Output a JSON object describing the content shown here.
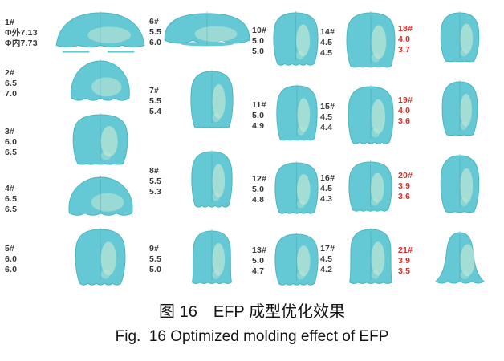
{
  "figure": {
    "background": "#ffffff",
    "shape_fill": "#64c9d4",
    "shape_edge": "#4ab5c3",
    "shape_highlight": "#bfe6d4",
    "shape_centerline": "#2d95a5",
    "label_color": "#3a3a3a",
    "red_label_color": "#d92d28",
    "caption_cn": "图 16　EFP 成型优化效果",
    "caption_en": "Fig.  16 Optimized molding effect of EFP",
    "columns": [
      {
        "units": [
          {
            "label": "1#",
            "values": [
              "Φ外7.13",
              "Φ内7.73"
            ],
            "red": false,
            "shape": "wide-dome-shape",
            "w": 112,
            "h": 46
          },
          {
            "label": "2#",
            "values": [
              "6.5",
              "7.0"
            ],
            "red": false,
            "shape": "round-cap-shape",
            "w": 78,
            "h": 54
          },
          {
            "label": "3#",
            "values": [
              "6.0",
              "6.5"
            ],
            "red": false,
            "shape": "bell-shape",
            "w": 70,
            "h": 64
          },
          {
            "label": "4#",
            "values": [
              "6.5",
              "6.5"
            ],
            "red": false,
            "shape": "round-cap-shape",
            "w": 85,
            "h": 52
          },
          {
            "label": "5#",
            "values": [
              "6.0",
              "6.0"
            ],
            "red": false,
            "shape": "bell-scallop-shape",
            "w": 64,
            "h": 70
          }
        ]
      },
      {
        "units": [
          {
            "label": "6#",
            "values": [
              "5.5",
              "6.0"
            ],
            "red": false,
            "shape": "wide-flat-cap-shape",
            "w": 110,
            "h": 44
          },
          {
            "label": "7#",
            "values": [
              "5.5",
              "5.4"
            ],
            "red": false,
            "shape": "bell-shape",
            "w": 54,
            "h": 72
          },
          {
            "label": "8#",
            "values": [
              "5.5",
              "5.3"
            ],
            "red": false,
            "shape": "bell-scallop-shape",
            "w": 52,
            "h": 70
          },
          {
            "label": "9#",
            "values": [
              "5.5",
              "5.0"
            ],
            "red": false,
            "shape": "bell-skirt-shape",
            "w": 52,
            "h": 68
          }
        ]
      },
      {
        "units": [
          {
            "label": "10#",
            "values": [
              "5.0",
              "5.0"
            ],
            "red": false,
            "shape": "bell-scallop-shape",
            "w": 57,
            "h": 66
          },
          {
            "label": "11#",
            "values": [
              "5.0",
              "4.9"
            ],
            "red": false,
            "shape": "bell-shape",
            "w": 52,
            "h": 70
          },
          {
            "label": "12#",
            "values": [
              "5.0",
              "4.8"
            ],
            "red": false,
            "shape": "bell-scallop-shape",
            "w": 55,
            "h": 64
          },
          {
            "label": "13#",
            "values": [
              "5.0",
              "4.7"
            ],
            "red": false,
            "shape": "bell-scallop-shape",
            "w": 55,
            "h": 64
          }
        ]
      },
      {
        "units": [
          {
            "label": "14#",
            "values": [
              "4.5",
              "4.5"
            ],
            "red": false,
            "shape": "bell-shape",
            "w": 62,
            "h": 70
          },
          {
            "label": "15#",
            "values": [
              "4.5",
              "4.4"
            ],
            "red": false,
            "shape": "bell-scallop-shape",
            "w": 58,
            "h": 72
          },
          {
            "label": "16#",
            "values": [
              "4.5",
              "4.3"
            ],
            "red": false,
            "shape": "bell-scallop-shape",
            "w": 55,
            "h": 62
          },
          {
            "label": "17#",
            "values": [
              "4.5",
              "4.2"
            ],
            "red": false,
            "shape": "bell-skirt-shape",
            "w": 56,
            "h": 70
          }
        ]
      },
      {
        "units": [
          {
            "label": "18#",
            "values": [
              "4.0",
              "3.7"
            ],
            "red": true,
            "shape": "egg-shape",
            "w": 52,
            "h": 62
          },
          {
            "label": "19#",
            "values": [
              "4.0",
              "3.6"
            ],
            "red": true,
            "shape": "egg-shape",
            "w": 48,
            "h": 68
          },
          {
            "label": "20#",
            "values": [
              "3.9",
              "3.6"
            ],
            "red": true,
            "shape": "egg-shape",
            "w": 52,
            "h": 72
          },
          {
            "label": "21#",
            "values": [
              "3.9",
              "3.5"
            ],
            "red": true,
            "shape": "flared-skirt-shape",
            "w": 60,
            "h": 66
          }
        ]
      }
    ]
  }
}
